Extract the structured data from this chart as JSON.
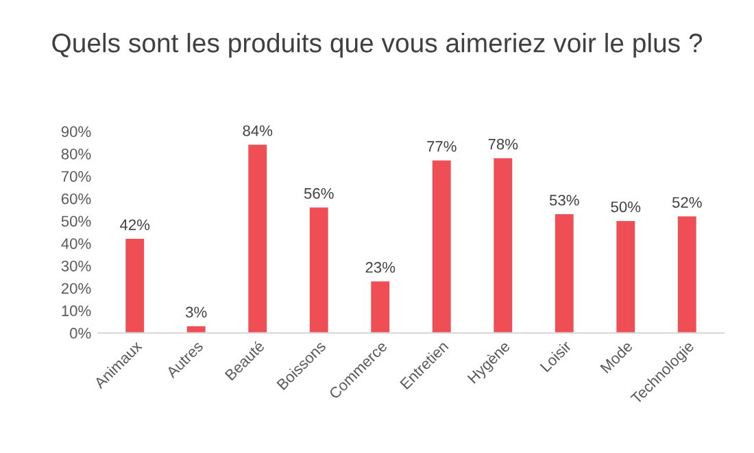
{
  "chart_data": {
    "type": "bar",
    "title": "Quels sont les produits que vous aimeriez voir le plus ?",
    "categories": [
      "Animaux",
      "Autres",
      "Beauté",
      "Boissons",
      "Commerce",
      "Entretien",
      "Hygène",
      "Loisir",
      "Mode",
      "Technologie"
    ],
    "values": [
      42,
      3,
      84,
      56,
      23,
      77,
      78,
      53,
      50,
      52
    ],
    "value_labels": [
      "42%",
      "3%",
      "84%",
      "56%",
      "23%",
      "77%",
      "78%",
      "53%",
      "50%",
      "52%"
    ],
    "color": "#ef4e55",
    "ylim": [
      0,
      90
    ],
    "yticks": [
      {
        "value": 0,
        "label": "0%"
      },
      {
        "value": 10,
        "label": "10%"
      },
      {
        "value": 20,
        "label": "20%"
      },
      {
        "value": 30,
        "label": "30%"
      },
      {
        "value": 40,
        "label": "40%"
      },
      {
        "value": 50,
        "label": "50%"
      },
      {
        "value": 60,
        "label": "60%"
      },
      {
        "value": 70,
        "label": "70%"
      },
      {
        "value": 80,
        "label": "80%"
      },
      {
        "value": 90,
        "label": "90%"
      }
    ],
    "grid": false,
    "legend": false
  }
}
